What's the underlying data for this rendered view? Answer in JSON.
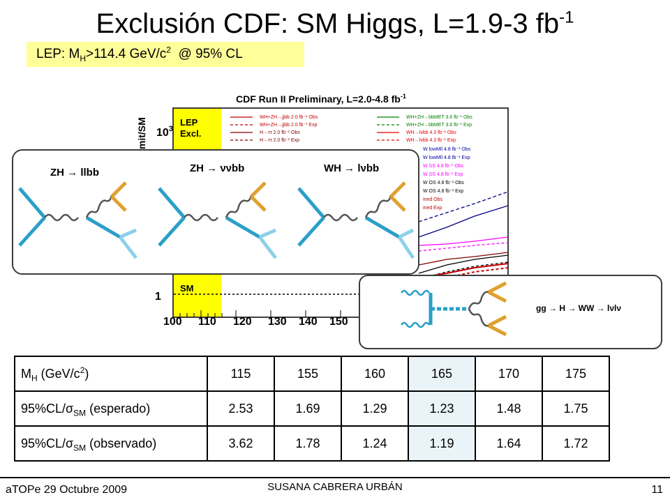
{
  "slide": {
    "title_main": "Exclusión CDF: SM Higgs, L=1.9-3 fb",
    "title_sup": "-1",
    "lep": {
      "prefix": "LEP: M",
      "sub": "H",
      "middle": ">114.4 GeV/c",
      "sup": "2",
      "suffix": "  @ 95% CL"
    }
  },
  "plot": {
    "title": "CDF Run II Preliminary, L=2.0-4.8 fb",
    "title_sup": "-1",
    "ylabel_fragment": "imit/SM",
    "y_tick_top": "10",
    "y_tick_top_sup": "3",
    "y_tick_one": "1",
    "lep_label_1": "LEP",
    "lep_label_2": "Excl.",
    "sm_label": "SM",
    "x_ticks": [
      "100",
      "110",
      "120",
      "130",
      "140",
      "150"
    ],
    "legend_left": [
      "WH+ZH→jjbb 2.0 fb⁻¹ Obs",
      "WH+ZH→jjbb 2.0 fb⁻¹ Exp",
      "H→ττ 2.0 fb⁻¹ Obs",
      "H→ττ 2.0 fb⁻¹ Exp"
    ],
    "legend_right": [
      "WH+ZH→bbMET 3.6 fb⁻¹ Obs",
      "WH+ZH→bbMET 3.6 fb⁻¹ Exp",
      "WH→lνbb 4.3 fb⁻¹ Obs",
      "WH→lνbb 4.3 fb⁻¹ Exp"
    ],
    "legend_more": [
      "W lowMll 4.8 fb⁻¹ Obs",
      "W lowMll 4.8 fb⁻¹ Exp",
      "W SS 4.8 fb⁻¹ Obs",
      "W SS 4.8 fb⁻¹ Exp",
      "W OS 4.8 fb⁻¹ Obs",
      "W OS 4.8 fb⁻¹ Exp",
      "ined Obs",
      "ined Exp"
    ]
  },
  "diagrams": {
    "zh_llbb": "ZH → llbb",
    "zh_vvbb": "ZH → ννbb",
    "wh_lvbb": "WH → lνbb",
    "gg_ww": "gg → H → WW → lνlν"
  },
  "table": {
    "header_label": {
      "prefix": "M",
      "sub": "H",
      "middle": " (GeV/c",
      "sup": "2",
      "suffix": ")"
    },
    "masses": [
      "115",
      "155",
      "160",
      "165",
      "170",
      "175"
    ],
    "expected_label": {
      "prefix": "95%CL/σ",
      "sub": "SM",
      "suffix": " (esperado)"
    },
    "expected": [
      "2.53",
      "1.69",
      "1.29",
      "1.23",
      "1.48",
      "1.75"
    ],
    "observed_label": {
      "prefix": "95%CL/σ",
      "sub": "SM",
      "suffix": " (observado)"
    },
    "observed": [
      "3.62",
      "1.78",
      "1.24",
      "1.19",
      "1.64",
      "1.72"
    ]
  },
  "footer": {
    "left": "aTOPe 29 Octubre 2009",
    "center": "SUSANA CABRERA URBÁN",
    "page": "11"
  },
  "colors": {
    "lep_box": "#ffff99",
    "plot_lep_band": "#ffff00",
    "highlight_column": "#eaf4f8",
    "diagram_border": "#3c3c3c"
  }
}
